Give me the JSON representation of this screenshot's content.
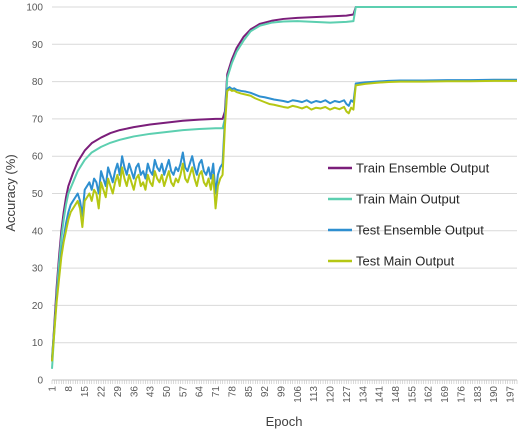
{
  "chart_data": {
    "type": "line",
    "title": "",
    "xlabel": "Epoch",
    "ylabel": "Accuracy (%)",
    "xlim": [
      1,
      200
    ],
    "ylim": [
      0,
      100
    ],
    "yticks": [
      0,
      10,
      20,
      30,
      40,
      50,
      60,
      70,
      80,
      90,
      100
    ],
    "xticks": [
      1,
      8,
      15,
      22,
      29,
      36,
      43,
      50,
      57,
      64,
      71,
      78,
      85,
      92,
      99,
      106,
      113,
      120,
      127,
      134,
      141,
      148,
      155,
      162,
      169,
      176,
      183,
      190,
      197
    ],
    "grid": "horizontal",
    "legend_position": "right-middle",
    "series": [
      {
        "name": "Train Ensemble Output",
        "color": "#7B1E7A",
        "points": [
          [
            1,
            5
          ],
          [
            2,
            15
          ],
          [
            3,
            25
          ],
          [
            4,
            33
          ],
          [
            5,
            40
          ],
          [
            6,
            45
          ],
          [
            7,
            49
          ],
          [
            8,
            52
          ],
          [
            10,
            55.5
          ],
          [
            12,
            58.5
          ],
          [
            15,
            61.5
          ],
          [
            18,
            63.5
          ],
          [
            22,
            65
          ],
          [
            26,
            66.2
          ],
          [
            30,
            67
          ],
          [
            36,
            67.8
          ],
          [
            43,
            68.5
          ],
          [
            50,
            69
          ],
          [
            57,
            69.5
          ],
          [
            64,
            69.8
          ],
          [
            71,
            70
          ],
          [
            74,
            70
          ],
          [
            75,
            72
          ],
          [
            76,
            82
          ],
          [
            78,
            86
          ],
          [
            80,
            89
          ],
          [
            83,
            92
          ],
          [
            86,
            94
          ],
          [
            90,
            95.5
          ],
          [
            95,
            96.3
          ],
          [
            100,
            96.8
          ],
          [
            106,
            97.1
          ],
          [
            113,
            97.3
          ],
          [
            120,
            97.5
          ],
          [
            127,
            97.7
          ],
          [
            130,
            98
          ],
          [
            131,
            100
          ],
          [
            140,
            100
          ],
          [
            150,
            100
          ],
          [
            160,
            100
          ],
          [
            170,
            100
          ],
          [
            180,
            100
          ],
          [
            190,
            100
          ],
          [
            200,
            100
          ]
        ]
      },
      {
        "name": "Train Main Output",
        "color": "#5CCFB0",
        "points": [
          [
            1,
            3
          ],
          [
            2,
            13
          ],
          [
            3,
            23
          ],
          [
            4,
            31
          ],
          [
            5,
            38
          ],
          [
            6,
            43
          ],
          [
            7,
            47
          ],
          [
            8,
            50
          ],
          [
            10,
            53
          ],
          [
            12,
            56
          ],
          [
            15,
            59
          ],
          [
            18,
            61
          ],
          [
            22,
            62.5
          ],
          [
            26,
            63.6
          ],
          [
            30,
            64.4
          ],
          [
            36,
            65.3
          ],
          [
            43,
            66
          ],
          [
            50,
            66.5
          ],
          [
            57,
            67
          ],
          [
            64,
            67.3
          ],
          [
            71,
            67.5
          ],
          [
            74,
            67.5
          ],
          [
            75,
            70
          ],
          [
            76,
            81
          ],
          [
            78,
            85
          ],
          [
            80,
            88
          ],
          [
            83,
            91
          ],
          [
            86,
            93.5
          ],
          [
            90,
            95
          ],
          [
            95,
            95.8
          ],
          [
            100,
            96.1
          ],
          [
            106,
            96.2
          ],
          [
            113,
            96
          ],
          [
            120,
            95.8
          ],
          [
            127,
            96
          ],
          [
            130,
            96.2
          ],
          [
            131,
            100
          ],
          [
            140,
            100
          ],
          [
            150,
            100
          ],
          [
            160,
            100
          ],
          [
            170,
            100
          ],
          [
            180,
            100
          ],
          [
            190,
            100
          ],
          [
            200,
            100
          ]
        ]
      },
      {
        "name": "Test Ensemble Output",
        "color": "#2E8FD0",
        "points": [
          [
            1,
            6
          ],
          [
            2,
            14
          ],
          [
            3,
            22
          ],
          [
            4,
            28
          ],
          [
            5,
            34
          ],
          [
            6,
            38
          ],
          [
            7,
            42
          ],
          [
            8,
            45
          ],
          [
            9,
            47
          ],
          [
            10,
            48
          ],
          [
            11,
            49
          ],
          [
            12,
            50
          ],
          [
            13,
            48
          ],
          [
            14,
            44
          ],
          [
            15,
            51
          ],
          [
            16,
            52
          ],
          [
            17,
            53
          ],
          [
            18,
            51
          ],
          [
            19,
            54
          ],
          [
            20,
            53
          ],
          [
            21,
            50
          ],
          [
            22,
            56
          ],
          [
            23,
            54
          ],
          [
            24,
            52
          ],
          [
            25,
            57
          ],
          [
            26,
            55
          ],
          [
            27,
            53
          ],
          [
            28,
            56
          ],
          [
            29,
            58
          ],
          [
            30,
            55
          ],
          [
            31,
            60
          ],
          [
            32,
            57
          ],
          [
            33,
            55
          ],
          [
            34,
            58
          ],
          [
            35,
            56
          ],
          [
            36,
            54
          ],
          [
            37,
            57
          ],
          [
            38,
            58
          ],
          [
            39,
            55
          ],
          [
            40,
            56
          ],
          [
            41,
            54
          ],
          [
            42,
            58
          ],
          [
            43,
            56
          ],
          [
            44,
            55
          ],
          [
            45,
            59
          ],
          [
            46,
            57
          ],
          [
            47,
            56
          ],
          [
            48,
            58
          ],
          [
            49,
            55
          ],
          [
            50,
            57
          ],
          [
            51,
            59
          ],
          [
            52,
            56
          ],
          [
            53,
            55
          ],
          [
            54,
            57
          ],
          [
            55,
            56
          ],
          [
            56,
            58
          ],
          [
            57,
            61
          ],
          [
            58,
            57
          ],
          [
            59,
            56
          ],
          [
            60,
            58
          ],
          [
            61,
            60
          ],
          [
            62,
            57
          ],
          [
            63,
            55
          ],
          [
            64,
            58
          ],
          [
            65,
            59
          ],
          [
            66,
            56
          ],
          [
            67,
            55
          ],
          [
            68,
            57
          ],
          [
            69,
            54
          ],
          [
            70,
            58
          ],
          [
            71,
            50
          ],
          [
            72,
            55
          ],
          [
            73,
            57
          ],
          [
            74,
            58
          ],
          [
            75,
            70
          ],
          [
            76,
            78
          ],
          [
            77,
            78.5
          ],
          [
            78,
            78
          ],
          [
            79,
            78.2
          ],
          [
            80,
            77.8
          ],
          [
            82,
            77.5
          ],
          [
            84,
            77.3
          ],
          [
            86,
            77
          ],
          [
            88,
            76.5
          ],
          [
            90,
            76
          ],
          [
            92,
            75.8
          ],
          [
            94,
            75.5
          ],
          [
            96,
            75.2
          ],
          [
            98,
            75
          ],
          [
            100,
            74.8
          ],
          [
            102,
            74.5
          ],
          [
            104,
            75
          ],
          [
            106,
            74.8
          ],
          [
            108,
            74.5
          ],
          [
            110,
            75
          ],
          [
            112,
            74.3
          ],
          [
            114,
            74.8
          ],
          [
            116,
            74.5
          ],
          [
            118,
            75
          ],
          [
            120,
            74.2
          ],
          [
            122,
            74.8
          ],
          [
            124,
            74.5
          ],
          [
            126,
            75
          ],
          [
            127,
            74
          ],
          [
            128,
            73.5
          ],
          [
            129,
            75
          ],
          [
            130,
            74.5
          ],
          [
            131,
            79.5
          ],
          [
            135,
            79.8
          ],
          [
            140,
            80
          ],
          [
            145,
            80.2
          ],
          [
            150,
            80.3
          ],
          [
            160,
            80.3
          ],
          [
            170,
            80.4
          ],
          [
            180,
            80.4
          ],
          [
            190,
            80.5
          ],
          [
            200,
            80.5
          ]
        ]
      },
      {
        "name": "Test Main Output",
        "color": "#B5C714",
        "points": [
          [
            1,
            5
          ],
          [
            2,
            13
          ],
          [
            3,
            21
          ],
          [
            4,
            27
          ],
          [
            5,
            33
          ],
          [
            6,
            37
          ],
          [
            7,
            40
          ],
          [
            8,
            43
          ],
          [
            9,
            45
          ],
          [
            10,
            46
          ],
          [
            11,
            47
          ],
          [
            12,
            48
          ],
          [
            13,
            46
          ],
          [
            14,
            41
          ],
          [
            15,
            48
          ],
          [
            16,
            49
          ],
          [
            17,
            50
          ],
          [
            18,
            48
          ],
          [
            19,
            51
          ],
          [
            20,
            50
          ],
          [
            21,
            46
          ],
          [
            22,
            53
          ],
          [
            23,
            51
          ],
          [
            24,
            49
          ],
          [
            25,
            54
          ],
          [
            26,
            52
          ],
          [
            27,
            50
          ],
          [
            28,
            53
          ],
          [
            29,
            55
          ],
          [
            30,
            52
          ],
          [
            31,
            57
          ],
          [
            32,
            54
          ],
          [
            33,
            52
          ],
          [
            34,
            55
          ],
          [
            35,
            53
          ],
          [
            36,
            51
          ],
          [
            37,
            54
          ],
          [
            38,
            55
          ],
          [
            39,
            52
          ],
          [
            40,
            53
          ],
          [
            41,
            51
          ],
          [
            42,
            55
          ],
          [
            43,
            53
          ],
          [
            44,
            52
          ],
          [
            45,
            56
          ],
          [
            46,
            54
          ],
          [
            47,
            53
          ],
          [
            48,
            55
          ],
          [
            49,
            52
          ],
          [
            50,
            54
          ],
          [
            51,
            56
          ],
          [
            52,
            53
          ],
          [
            53,
            52
          ],
          [
            54,
            54
          ],
          [
            55,
            53
          ],
          [
            56,
            55
          ],
          [
            57,
            58
          ],
          [
            58,
            54
          ],
          [
            59,
            53
          ],
          [
            60,
            55
          ],
          [
            61,
            57
          ],
          [
            62,
            54
          ],
          [
            63,
            52
          ],
          [
            64,
            55
          ],
          [
            65,
            56
          ],
          [
            66,
            53
          ],
          [
            67,
            52
          ],
          [
            68,
            54
          ],
          [
            69,
            51
          ],
          [
            70,
            55
          ],
          [
            71,
            46
          ],
          [
            72,
            52
          ],
          [
            73,
            54
          ],
          [
            74,
            55
          ],
          [
            75,
            68
          ],
          [
            76,
            77.5
          ],
          [
            77,
            78
          ],
          [
            78,
            77.5
          ],
          [
            79,
            77.6
          ],
          [
            80,
            77.2
          ],
          [
            82,
            76.8
          ],
          [
            84,
            76.5
          ],
          [
            86,
            76.2
          ],
          [
            88,
            75.5
          ],
          [
            90,
            75
          ],
          [
            92,
            74.5
          ],
          [
            94,
            74
          ],
          [
            96,
            73.8
          ],
          [
            98,
            73.5
          ],
          [
            100,
            73.2
          ],
          [
            102,
            73
          ],
          [
            104,
            73.5
          ],
          [
            106,
            73.2
          ],
          [
            108,
            72.8
          ],
          [
            110,
            73.3
          ],
          [
            112,
            72.5
          ],
          [
            114,
            73
          ],
          [
            116,
            72.8
          ],
          [
            118,
            73.2
          ],
          [
            120,
            72.5
          ],
          [
            122,
            73
          ],
          [
            124,
            72.6
          ],
          [
            126,
            73.2
          ],
          [
            127,
            72
          ],
          [
            128,
            71.5
          ],
          [
            129,
            73
          ],
          [
            130,
            72.5
          ],
          [
            131,
            79
          ],
          [
            135,
            79.4
          ],
          [
            140,
            79.7
          ],
          [
            145,
            79.9
          ],
          [
            150,
            80
          ],
          [
            160,
            80
          ],
          [
            170,
            80.1
          ],
          [
            180,
            80.1
          ],
          [
            190,
            80.2
          ],
          [
            200,
            80.2
          ]
        ]
      }
    ]
  }
}
